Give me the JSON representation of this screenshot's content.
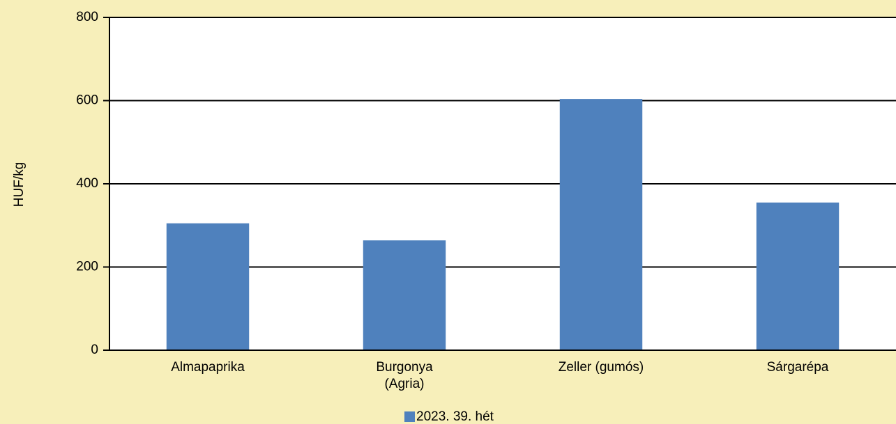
{
  "chart_data": {
    "type": "bar",
    "categories": [
      "Almapaprika",
      "Burgonya\n(Agria)",
      "Zeller (gumós)",
      "Sárgarépa"
    ],
    "series": [
      {
        "name": "2023. 39. hét",
        "color": "#4f81bd",
        "values": [
          305,
          264,
          604,
          355
        ]
      }
    ],
    "ylabel": "HUF/kg",
    "ylim": [
      0,
      800
    ],
    "yticks": [
      0,
      200,
      400,
      600,
      800
    ],
    "grid": true,
    "legend": "bottom"
  }
}
